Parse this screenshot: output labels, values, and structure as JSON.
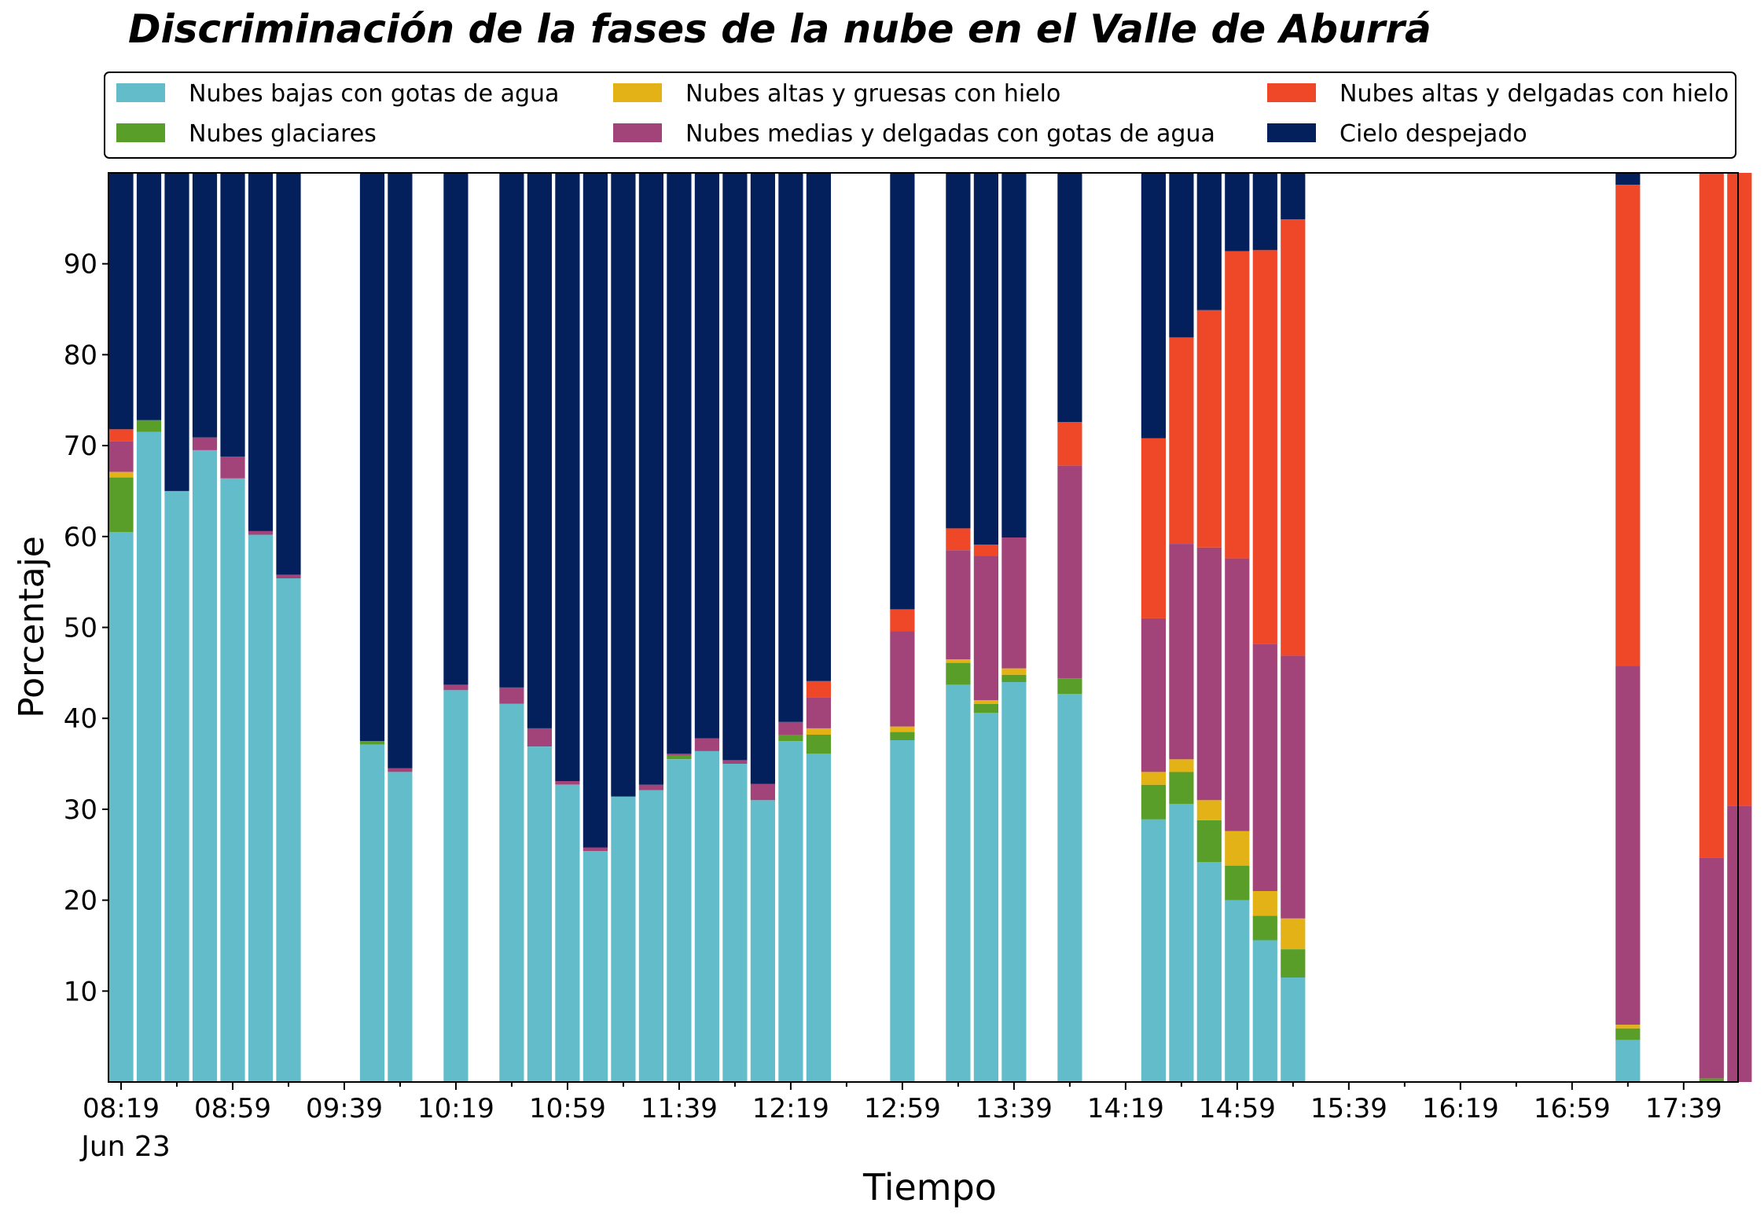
{
  "chart_data": {
    "type": "bar",
    "stacked": true,
    "title": "Discriminación de la fases de la nube en el Valle de Aburrá",
    "xlabel": "Tiempo",
    "ylabel": "Porcentaje",
    "ylim": [
      0,
      100
    ],
    "y_ticks": [
      10,
      20,
      30,
      40,
      50,
      60,
      70,
      80,
      90
    ],
    "x_ticks": [
      "08:19",
      "08:59",
      "09:39",
      "10:19",
      "10:59",
      "11:39",
      "12:19",
      "12:59",
      "13:39",
      "14:19",
      "14:59",
      "15:39",
      "16:19",
      "16:59",
      "17:39"
    ],
    "x_sublabel": "Jun 23",
    "time_range": [
      "08:19",
      "18:03"
    ],
    "slot_minutes": 10,
    "legend": {
      "placement": "top",
      "columns": 3
    },
    "series": [
      {
        "name": "Nubes bajas con gotas de agua",
        "color": "#62BCC9"
      },
      {
        "name": "Nubes glaciares",
        "color": "#5A9E2A"
      },
      {
        "name": "Nubes altas y gruesas con hielo",
        "color": "#E2B217"
      },
      {
        "name": "Nubes medias y delgadas con gotas de agua",
        "color": "#A2437A"
      },
      {
        "name": "Nubes altas y delgadas con hielo",
        "color": "#EE4828"
      },
      {
        "name": "Cielo despejado",
        "color": "#031F5C"
      }
    ],
    "bars": [
      {
        "time": "08:19",
        "values": [
          60.5,
          6.0,
          0.6,
          3.4,
          1.3,
          28.2
        ]
      },
      {
        "time": "08:29",
        "values": [
          71.5,
          1.3,
          0,
          0,
          0,
          27.2
        ]
      },
      {
        "time": "08:39",
        "values": [
          65.0,
          0,
          0,
          0,
          0,
          35.0
        ]
      },
      {
        "time": "08:49",
        "values": [
          69.5,
          0,
          0,
          1.4,
          0,
          29.1
        ]
      },
      {
        "time": "08:59",
        "values": [
          66.4,
          0,
          0,
          2.4,
          0,
          31.2
        ]
      },
      {
        "time": "09:09",
        "values": [
          60.2,
          0,
          0,
          0.4,
          0,
          39.4
        ]
      },
      {
        "time": "09:19",
        "values": [
          55.4,
          0,
          0,
          0.4,
          0,
          44.2
        ]
      },
      {
        "time": "09:49",
        "values": [
          37.1,
          0.4,
          0,
          0,
          0,
          62.5
        ]
      },
      {
        "time": "09:59",
        "values": [
          34.1,
          0,
          0,
          0.4,
          0,
          65.5
        ]
      },
      {
        "time": "10:19",
        "values": [
          43.1,
          0,
          0,
          0.6,
          0,
          56.3
        ]
      },
      {
        "time": "10:39",
        "values": [
          41.6,
          0,
          0,
          1.8,
          0,
          56.6
        ]
      },
      {
        "time": "10:49",
        "values": [
          36.9,
          0,
          0,
          2.0,
          0,
          61.1
        ]
      },
      {
        "time": "10:59",
        "values": [
          32.7,
          0,
          0,
          0.4,
          0,
          66.9
        ]
      },
      {
        "time": "11:09",
        "values": [
          25.4,
          0,
          0,
          0.4,
          0,
          74.2
        ]
      },
      {
        "time": "11:19",
        "values": [
          31.4,
          0,
          0,
          0,
          0,
          68.6
        ]
      },
      {
        "time": "11:29",
        "values": [
          32.1,
          0,
          0,
          0.6,
          0,
          67.3
        ]
      },
      {
        "time": "11:39",
        "values": [
          35.5,
          0.4,
          0,
          0.2,
          0,
          63.9
        ]
      },
      {
        "time": "11:49",
        "values": [
          36.4,
          0,
          0,
          1.4,
          0,
          62.2
        ]
      },
      {
        "time": "11:59",
        "values": [
          35.0,
          0,
          0,
          0.4,
          0,
          64.6
        ]
      },
      {
        "time": "12:09",
        "values": [
          31.0,
          0,
          0,
          1.8,
          0,
          67.2
        ]
      },
      {
        "time": "12:19",
        "values": [
          37.5,
          0.7,
          0,
          1.4,
          0,
          60.4
        ]
      },
      {
        "time": "12:29",
        "values": [
          36.1,
          2.1,
          0.7,
          3.4,
          1.8,
          55.9
        ]
      },
      {
        "time": "12:59",
        "values": [
          37.6,
          0.9,
          0.6,
          10.5,
          2.4,
          48.0
        ]
      },
      {
        "time": "13:19",
        "values": [
          43.7,
          2.4,
          0.4,
          12.0,
          2.4,
          39.1
        ]
      },
      {
        "time": "13:29",
        "values": [
          40.6,
          1.0,
          0.4,
          15.9,
          1.2,
          40.9
        ]
      },
      {
        "time": "13:39",
        "values": [
          44.0,
          0.8,
          0.7,
          14.4,
          0,
          40.1
        ]
      },
      {
        "time": "13:59",
        "values": [
          42.7,
          1.7,
          0,
          23.4,
          4.8,
          27.4
        ]
      },
      {
        "time": "14:29",
        "values": [
          28.9,
          3.8,
          1.4,
          16.9,
          19.8,
          29.2
        ]
      },
      {
        "time": "14:39",
        "values": [
          30.6,
          3.5,
          1.4,
          23.7,
          22.7,
          18.1
        ]
      },
      {
        "time": "14:49",
        "values": [
          24.2,
          4.6,
          2.2,
          27.8,
          26.1,
          15.1
        ]
      },
      {
        "time": "14:59",
        "values": [
          20.0,
          3.8,
          3.8,
          30.0,
          33.8,
          8.6
        ]
      },
      {
        "time": "15:09",
        "values": [
          15.6,
          2.7,
          2.7,
          27.2,
          43.3,
          8.5
        ]
      },
      {
        "time": "15:19",
        "values": [
          11.5,
          3.1,
          3.4,
          28.9,
          48.0,
          5.1
        ]
      },
      {
        "time": "17:19",
        "values": [
          4.6,
          1.3,
          0.4,
          39.5,
          52.9,
          1.3
        ]
      },
      {
        "time": "17:49",
        "values": [
          0,
          0.4,
          0,
          24.3,
          75.3,
          0
        ]
      },
      {
        "time": "17:59",
        "values": [
          0,
          0,
          0,
          30.4,
          69.6,
          0
        ]
      }
    ]
  }
}
